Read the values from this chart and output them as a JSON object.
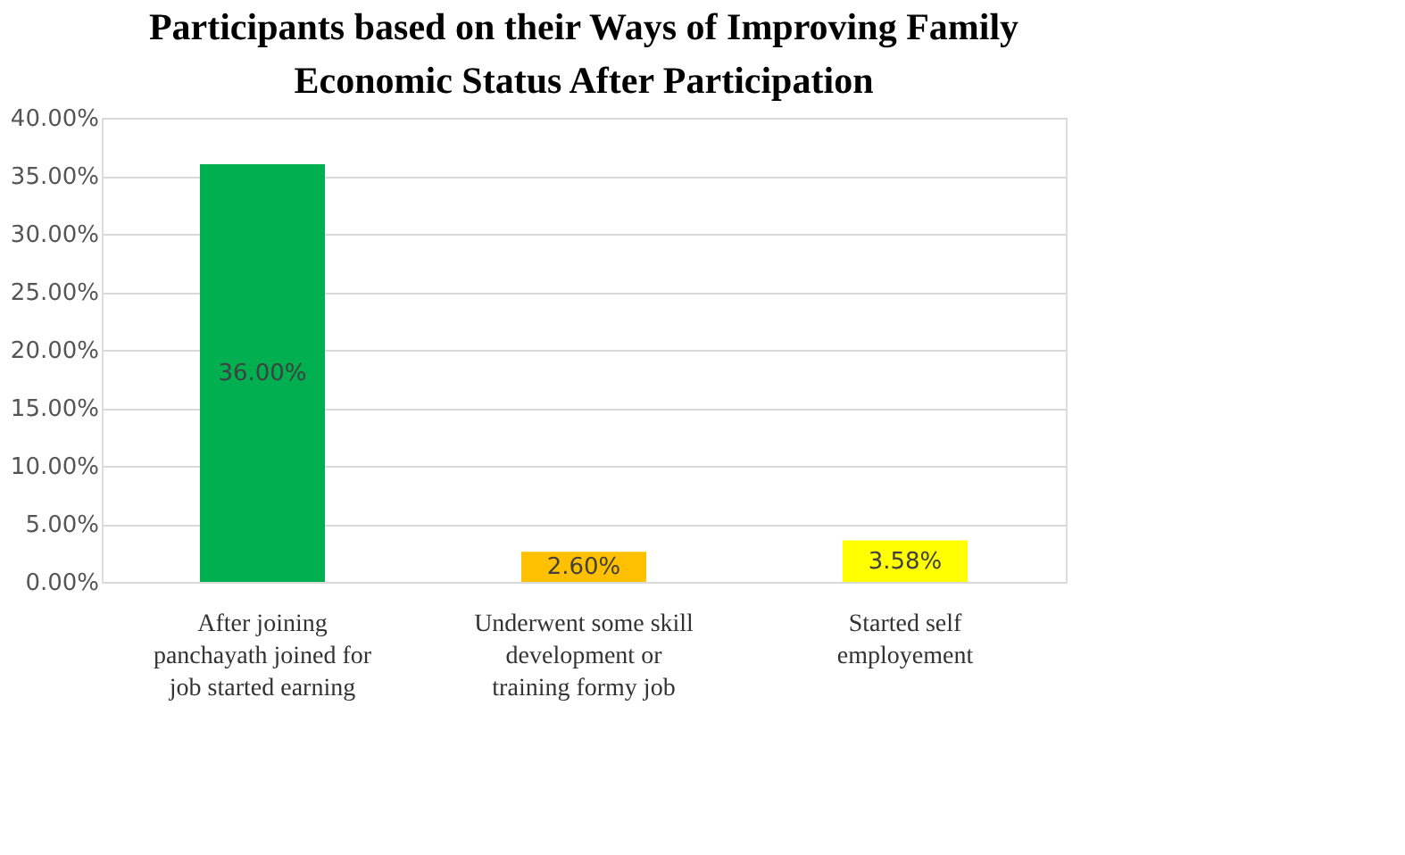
{
  "chart_data": {
    "type": "bar",
    "title": "Participants based on their Ways of Improving Family Economic Status After Participation",
    "categories": [
      "After joining panchayath joined for job started earning",
      "Underwent some skill development or training formy job",
      "Started self employement"
    ],
    "values": [
      36.0,
      2.6,
      3.58
    ],
    "colors": [
      "#00b050",
      "#ffc000",
      "#ffff00"
    ],
    "value_labels": [
      "36.00%",
      "2.60%",
      "3.58%"
    ],
    "ylim": [
      0,
      40
    ],
    "yticks": [
      {
        "value": 0,
        "label": "0.00%"
      },
      {
        "value": 5,
        "label": "5.00%"
      },
      {
        "value": 10,
        "label": "10.00%"
      },
      {
        "value": 15,
        "label": "15.00%"
      },
      {
        "value": 20,
        "label": "20.00%"
      },
      {
        "value": 25,
        "label": "25.00%"
      },
      {
        "value": 30,
        "label": "30.00%"
      },
      {
        "value": 35,
        "label": "35.00%"
      },
      {
        "value": 40,
        "label": "40.00%"
      }
    ],
    "grid": "y"
  }
}
